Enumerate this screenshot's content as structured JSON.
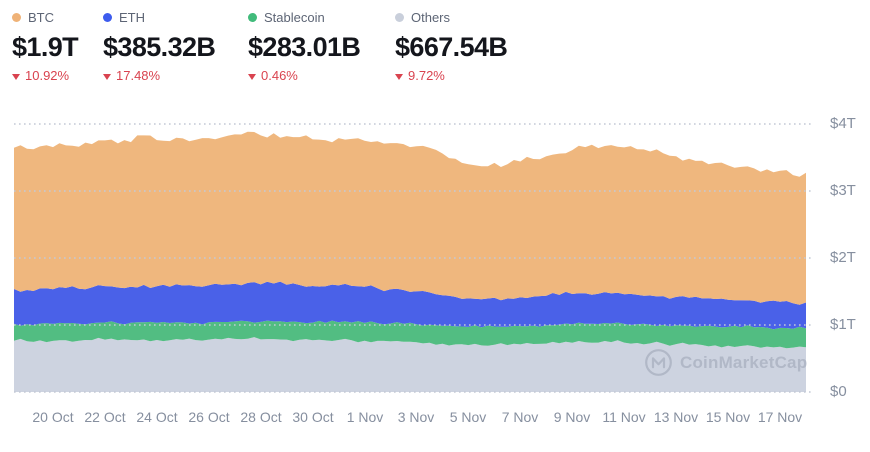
{
  "header": {
    "change_color": "#d9434f",
    "stats": [
      {
        "id": "btc",
        "label": "BTC",
        "value": "$1.9T",
        "change": "10.92%",
        "direction": "down",
        "color": "#efb277"
      },
      {
        "id": "eth",
        "label": "ETH",
        "value": "$385.32B",
        "change": "17.48%",
        "direction": "down",
        "color": "#3d5cee"
      },
      {
        "id": "stablecoin",
        "label": "Stablecoin",
        "value": "$283.01B",
        "change": "0.46%",
        "direction": "down",
        "color": "#41bb7b"
      },
      {
        "id": "others",
        "label": "Others",
        "value": "$667.54B",
        "change": "9.72%",
        "direction": "down",
        "color": "#c9cfdb"
      }
    ]
  },
  "watermark": {
    "text": "CoinMarketCap"
  },
  "chart_data": {
    "type": "area",
    "stacked": true,
    "unit": "$B",
    "ylim": [
      0,
      4000
    ],
    "grid": "dotted-horizontal",
    "legend_position": "top-left-header",
    "y_ticks": [
      {
        "label": "$0",
        "value": 0
      },
      {
        "label": "$1T",
        "value": 1000
      },
      {
        "label": "$2T",
        "value": 2000
      },
      {
        "label": "$3T",
        "value": 3000
      },
      {
        "label": "$4T",
        "value": 4000
      }
    ],
    "x_tick_labels": [
      "20 Oct",
      "22 Oct",
      "24 Oct",
      "26 Oct",
      "28 Oct",
      "30 Oct",
      "1 Nov",
      "3 Nov",
      "5 Nov",
      "7 Nov",
      "9 Nov",
      "11 Nov",
      "13 Nov",
      "15 Nov",
      "17 Nov"
    ],
    "x_tick_indices": [
      3,
      7,
      11,
      15,
      19,
      23,
      27,
      31,
      35,
      39,
      43,
      47,
      51,
      55,
      59
    ],
    "series": [
      {
        "name": "Others",
        "color": "#cdd3e0",
        "values": [
          766,
          758,
          770,
          762,
          772,
          765,
          775,
          782,
          772,
          776,
          784,
          776,
          772,
          780,
          775,
          782,
          785,
          792,
          795,
          785,
          790,
          782,
          780,
          772,
          770,
          776,
          772,
          766,
          762,
          755,
          750,
          742,
          735,
          720,
          710,
          700,
          695,
          705,
          700,
          710,
          716,
          722,
          728,
          735,
          742,
          738,
          745,
          738,
          732,
          726,
          722,
          715,
          708,
          702,
          696,
          690,
          686,
          682,
          678,
          674,
          662,
          668
        ]
      },
      {
        "name": "Stablecoin",
        "color": "#52bd82",
        "values": [
          252,
          253,
          252,
          254,
          253,
          255,
          254,
          256,
          255,
          257,
          258,
          257,
          258,
          259,
          258,
          260,
          260,
          261,
          262,
          261,
          263,
          262,
          263,
          264,
          263,
          265,
          265,
          266,
          266,
          267,
          268,
          268,
          269,
          270,
          271,
          272,
          272,
          273,
          273,
          274,
          274,
          275,
          275,
          276,
          276,
          277,
          277,
          278,
          278,
          279,
          280,
          280,
          281,
          281,
          282,
          282,
          282,
          283,
          283,
          283,
          282,
          283
        ]
      },
      {
        "name": "ETH",
        "color": "#4a61e8",
        "values": [
          520,
          512,
          525,
          518,
          528,
          522,
          532,
          542,
          532,
          538,
          556,
          545,
          540,
          550,
          546,
          552,
          556,
          564,
          572,
          560,
          566,
          558,
          554,
          546,
          544,
          550,
          546,
          538,
          522,
          512,
          505,
          495,
          482,
          455,
          438,
          425,
          418,
          428,
          422,
          430,
          434,
          440,
          446,
          452,
          456,
          452,
          450,
          444,
          440,
          436,
          430,
          424,
          418,
          414,
          410,
          404,
          400,
          396,
          394,
          390,
          382,
          385
        ]
      },
      {
        "name": "BTC",
        "color": "#efb77e",
        "values": [
          2107,
          2107,
          2118,
          2121,
          2127,
          2118,
          2139,
          2175,
          2151,
          2159,
          2232,
          2182,
          2175,
          2196,
          2186,
          2196,
          2199,
          2228,
          2256,
          2224,
          2243,
          2218,
          2208,
          2188,
          2181,
          2199,
          2195,
          2180,
          2192,
          2181,
          2177,
          2163,
          2159,
          2115,
          2061,
          2003,
          1983,
          2014,
          2003,
          2026,
          2054,
          2083,
          2109,
          2147,
          2181,
          2173,
          2213,
          2190,
          2172,
          2149,
          2130,
          2101,
          2073,
          2053,
          2030,
          2006,
          1992,
          1977,
          1967,
          1955,
          1912,
          1936
        ]
      }
    ]
  }
}
